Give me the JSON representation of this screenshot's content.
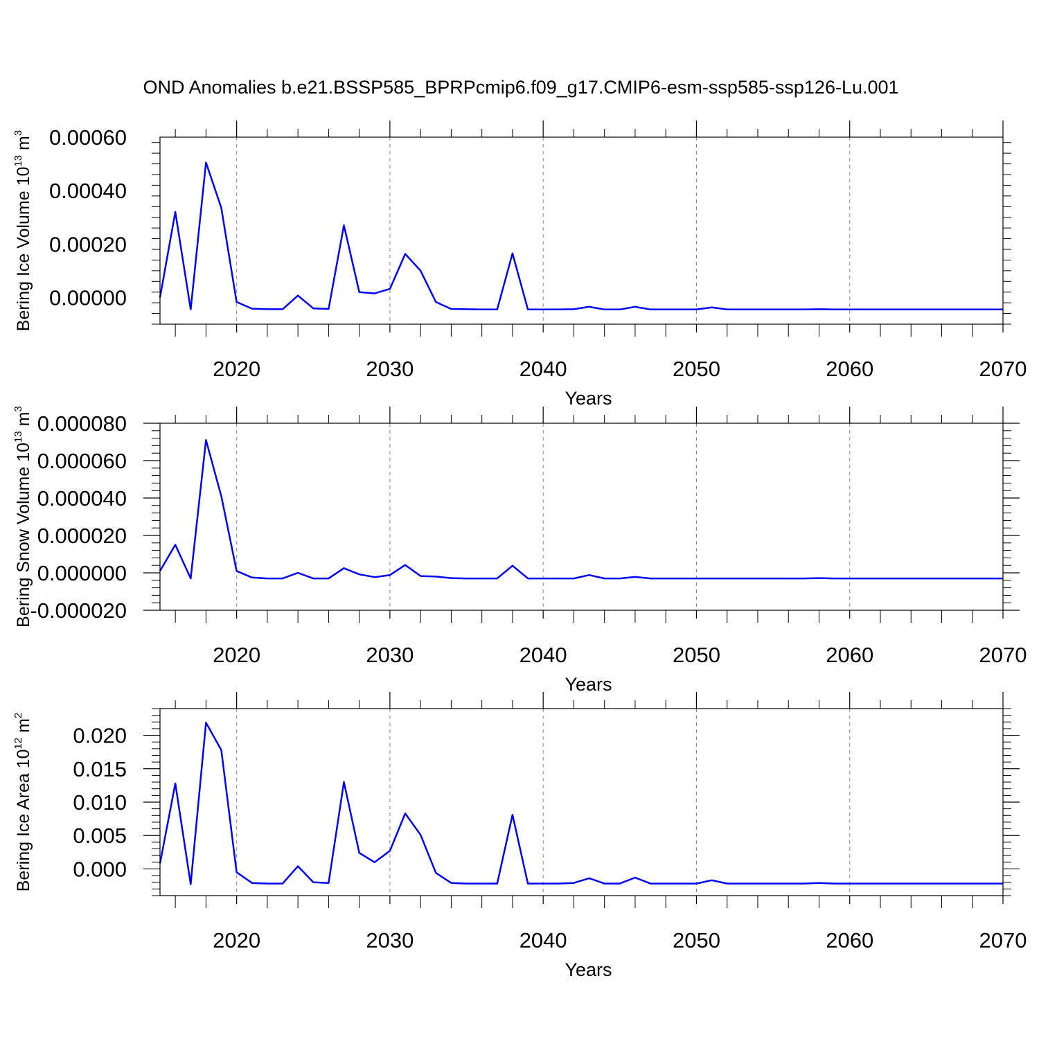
{
  "title": "OND Anomalies b.e21.BSSP585_BPRPcmip6.f09_g17.CMIP6-esm-ssp585-ssp126-Lu.001",
  "colors": {
    "line": "#0000ff",
    "axis": "#000000",
    "grid": "#888888"
  },
  "chart_data": [
    {
      "type": "line",
      "title": "OND Anomalies b.e21.BSSP585_BPRPcmip6.f09_g17.CMIP6-esm-ssp585-ssp126-Lu.001",
      "xlabel": "Years",
      "ylabel": {
        "text": "Bering Ice Volume 10",
        "sup": "13",
        "unit": " m",
        "unit_sup": "3"
      },
      "xlim": [
        2015,
        2070
      ],
      "ylim": [
        -0.0001,
        0.0006
      ],
      "xticks": [
        2020,
        2030,
        2040,
        2050,
        2060,
        2070
      ],
      "xtick_labels": [
        "2020",
        "2030",
        "2040",
        "2050",
        "2060",
        "2070"
      ],
      "yticks": [
        0,
        0.0002,
        0.0004,
        0.0006
      ],
      "ytick_labels": [
        "0.00000",
        "0.00020",
        "0.00040",
        "0.00060"
      ],
      "grid": "vertical dashed at major x ticks",
      "x": [
        2015,
        2016,
        2017,
        2018,
        2019,
        2020,
        2021,
        2022,
        2023,
        2024,
        2025,
        2026,
        2027,
        2028,
        2029,
        2030,
        2031,
        2032,
        2033,
        2034,
        2035,
        2036,
        2037,
        2038,
        2039,
        2040,
        2041,
        2042,
        2043,
        2044,
        2045,
        2046,
        2047,
        2048,
        2049,
        2050,
        2051,
        2052,
        2053,
        2054,
        2055,
        2056,
        2057,
        2058,
        2059,
        2060,
        2061,
        2062,
        2063,
        2064,
        2065,
        2066,
        2067,
        2068,
        2069,
        2070
      ],
      "series": [
        {
          "values": [
            0.0,
            0.00032,
            -4.5e-05,
            0.000505,
            0.000335,
            -1.7e-05,
            -4.2e-05,
            -4.4e-05,
            -4.4e-05,
            7e-06,
            -4.1e-05,
            -4.3e-05,
            0.00027,
            2e-05,
            1.5e-05,
            3.2e-05,
            0.000163,
            0.0001,
            -1.7e-05,
            -4.3e-05,
            -4.4e-05,
            -4.5e-05,
            -4.5e-05,
            0.000165,
            -4.5e-05,
            -4.5e-05,
            -4.5e-05,
            -4.4e-05,
            -3.5e-05,
            -4.5e-05,
            -4.5e-05,
            -3.5e-05,
            -4.5e-05,
            -4.5e-05,
            -4.5e-05,
            -4.5e-05,
            -3.7e-05,
            -4.5e-05,
            -4.5e-05,
            -4.5e-05,
            -4.5e-05,
            -4.5e-05,
            -4.5e-05,
            -4.4e-05,
            -4.5e-05,
            -4.5e-05,
            -4.5e-05,
            -4.5e-05,
            -4.5e-05,
            -4.5e-05,
            -4.5e-05,
            -4.5e-05,
            -4.5e-05,
            -4.5e-05,
            -4.5e-05,
            -4.5e-05
          ]
        }
      ]
    },
    {
      "type": "line",
      "xlabel": "Years",
      "ylabel": {
        "text": "Bering Snow Volume 10",
        "sup": "13",
        "unit": " m",
        "unit_sup": "3"
      },
      "xlim": [
        2015,
        2070
      ],
      "ylim": [
        -2e-05,
        8e-05
      ],
      "xticks": [
        2020,
        2030,
        2040,
        2050,
        2060,
        2070
      ],
      "xtick_labels": [
        "2020",
        "2030",
        "2040",
        "2050",
        "2060",
        "2070"
      ],
      "yticks": [
        -2e-05,
        0,
        2e-05,
        4e-05,
        6e-05,
        8e-05
      ],
      "ytick_labels": [
        "-0.000020",
        "0.000000",
        "0.000020",
        "0.000040",
        "0.000060",
        "0.000080"
      ],
      "grid": "vertical dashed at major x ticks",
      "x": [
        2015,
        2016,
        2017,
        2018,
        2019,
        2020,
        2021,
        2022,
        2023,
        2024,
        2025,
        2026,
        2027,
        2028,
        2029,
        2030,
        2031,
        2032,
        2033,
        2034,
        2035,
        2036,
        2037,
        2038,
        2039,
        2040,
        2041,
        2042,
        2043,
        2044,
        2045,
        2046,
        2047,
        2048,
        2049,
        2050,
        2051,
        2052,
        2053,
        2054,
        2055,
        2056,
        2057,
        2058,
        2059,
        2060,
        2061,
        2062,
        2063,
        2064,
        2065,
        2066,
        2067,
        2068,
        2069,
        2070
      ],
      "series": [
        {
          "values": [
            1e-06,
            1.5e-05,
            -3e-06,
            7.1e-05,
            4.1e-05,
            1e-06,
            -2.5e-06,
            -3e-06,
            -3e-06,
            0.0,
            -3e-06,
            -3e-06,
            2.5e-06,
            -8e-07,
            -2.3e-06,
            -1.2e-06,
            4.2e-06,
            -1.7e-06,
            -2e-06,
            -2.8e-06,
            -3e-06,
            -3e-06,
            -3e-06,
            3.8e-06,
            -3e-06,
            -3e-06,
            -3e-06,
            -3e-06,
            -1.2e-06,
            -3e-06,
            -3e-06,
            -2.2e-06,
            -3e-06,
            -3e-06,
            -3e-06,
            -3e-06,
            -3e-06,
            -3e-06,
            -3e-06,
            -3e-06,
            -3e-06,
            -3e-06,
            -3e-06,
            -2.8e-06,
            -3e-06,
            -3e-06,
            -3e-06,
            -3e-06,
            -3e-06,
            -3e-06,
            -3e-06,
            -3e-06,
            -3e-06,
            -3e-06,
            -3e-06,
            -3e-06
          ]
        }
      ]
    },
    {
      "type": "line",
      "xlabel": "Years",
      "ylabel": {
        "text": "Bering Ice Area 10",
        "sup": "12",
        "unit": " m",
        "unit_sup": "2"
      },
      "xlim": [
        2015,
        2070
      ],
      "ylim": [
        -0.004,
        0.024
      ],
      "xticks": [
        2020,
        2030,
        2040,
        2050,
        2060,
        2070
      ],
      "xtick_labels": [
        "2020",
        "2030",
        "2040",
        "2050",
        "2060",
        "2070"
      ],
      "yticks": [
        0,
        0.005,
        0.01,
        0.015,
        0.02
      ],
      "ytick_labels": [
        "0.000",
        "0.005",
        "0.010",
        "0.015",
        "0.020"
      ],
      "grid": "vertical dashed at major x ticks",
      "x": [
        2015,
        2016,
        2017,
        2018,
        2019,
        2020,
        2021,
        2022,
        2023,
        2024,
        2025,
        2026,
        2027,
        2028,
        2029,
        2030,
        2031,
        2032,
        2033,
        2034,
        2035,
        2036,
        2037,
        2038,
        2039,
        2040,
        2041,
        2042,
        2043,
        2044,
        2045,
        2046,
        2047,
        2048,
        2049,
        2050,
        2051,
        2052,
        2053,
        2054,
        2055,
        2056,
        2057,
        2058,
        2059,
        2060,
        2061,
        2062,
        2063,
        2064,
        2065,
        2066,
        2067,
        2068,
        2069,
        2070
      ],
      "series": [
        {
          "values": [
            0.0008,
            0.0128,
            -0.0023,
            0.0219,
            0.0178,
            -0.0005,
            -0.0021,
            -0.0022,
            -0.0022,
            0.0004,
            -0.002,
            -0.0021,
            0.013,
            0.0024,
            0.001,
            0.0027,
            0.0083,
            0.0051,
            -0.0006,
            -0.0021,
            -0.0022,
            -0.0022,
            -0.0022,
            0.0081,
            -0.0022,
            -0.0022,
            -0.0022,
            -0.0021,
            -0.0014,
            -0.0022,
            -0.0022,
            -0.0013,
            -0.0022,
            -0.0022,
            -0.0022,
            -0.0022,
            -0.0017,
            -0.0022,
            -0.0022,
            -0.0022,
            -0.0022,
            -0.0022,
            -0.0022,
            -0.0021,
            -0.0022,
            -0.0022,
            -0.0022,
            -0.0022,
            -0.0022,
            -0.0022,
            -0.0022,
            -0.0022,
            -0.0022,
            -0.0022,
            -0.0022,
            -0.0022
          ]
        }
      ]
    }
  ]
}
